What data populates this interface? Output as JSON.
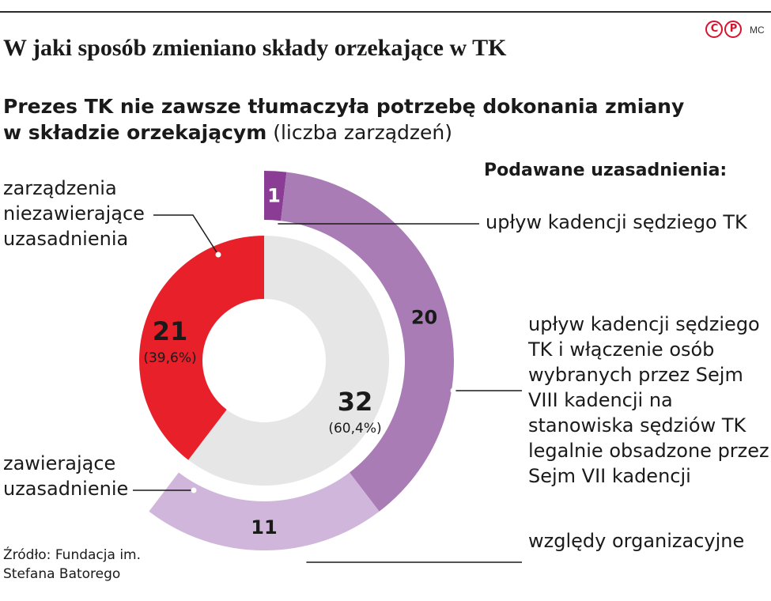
{
  "header": {
    "logo_text": "CP",
    "author": "MC",
    "title": "W jaki sposób zmieniano składy orzekające w TK",
    "subtitle_bold": "Prezes TK nie zawsze tłumaczyła potrzebę dokonania zmiany w składzie orzekającym",
    "subtitle_unit": "(liczba zarządzeń)"
  },
  "chart_data": [
    {
      "type": "pie",
      "variant": "donut",
      "slices": [
        {
          "label": "zarządzenia niezawierające uzasadnienia",
          "value": 21,
          "value_label": "21",
          "pct_label": "(39,6%)",
          "color": "#e8202a"
        },
        {
          "label": "zawierające uzasadnienie",
          "value": 32,
          "value_label": "32",
          "pct_label": "(60,4%)",
          "color": "#e6e6e6"
        }
      ]
    },
    {
      "type": "pie",
      "variant": "outer-ring breakdown of 'zawierające uzasadnienie'",
      "title": "Podawane uzasadnienia:",
      "slices": [
        {
          "label": "upływ kadencji sędziego TK",
          "value": 1,
          "value_label": "1",
          "color": "#8b3d96"
        },
        {
          "label": "upływ kadencji sędziego TK i włączenie osób wybranych przez Sejm VIII kadencji na stanowiska sędziów TK legalnie obsadzone przez Sejm VII kadencji",
          "value": 20,
          "value_label": "20",
          "color": "#a97cb6"
        },
        {
          "label": "względy organizacyjne",
          "value": 11,
          "value_label": "11",
          "color": "#d0b6da"
        }
      ]
    }
  ],
  "source": "Źródło: Fundacja im. Stefana Batorego"
}
